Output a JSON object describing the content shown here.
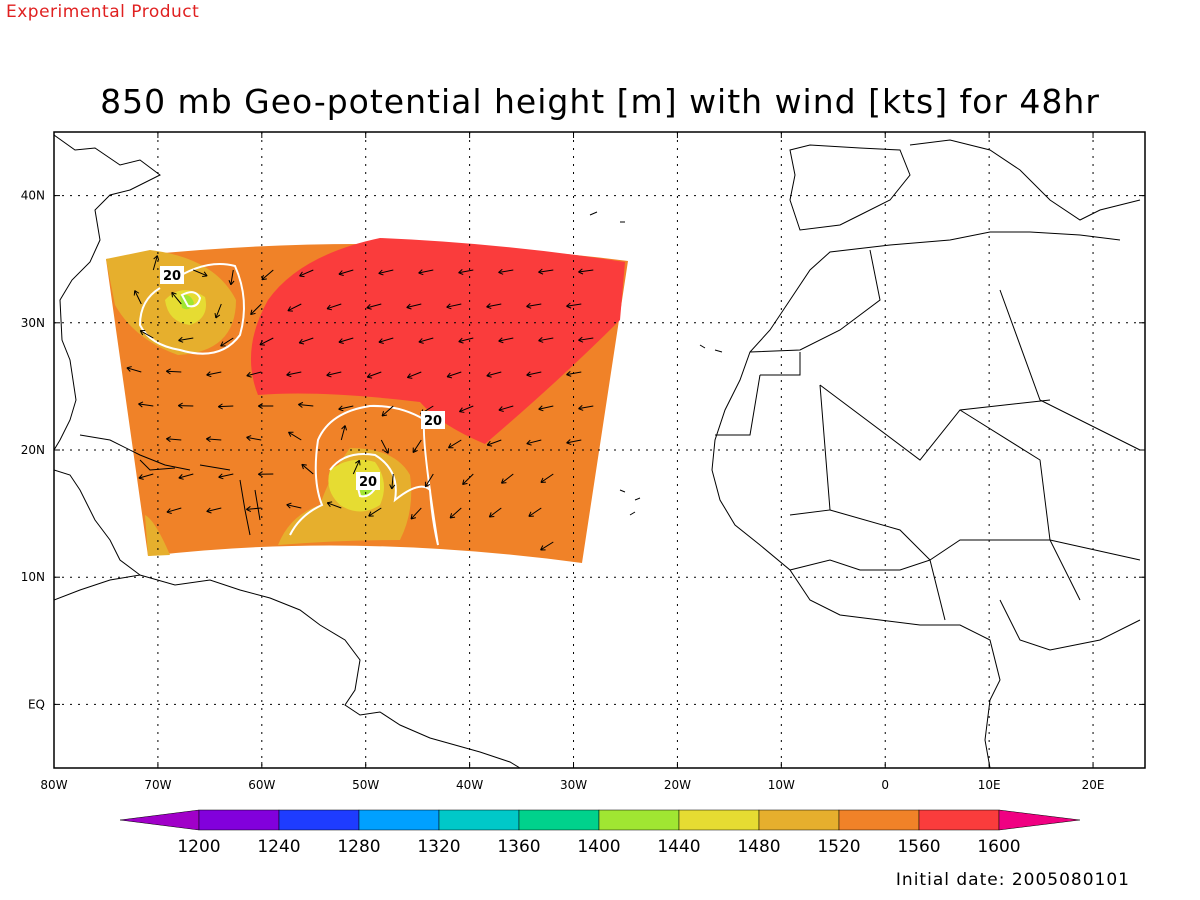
{
  "header": {
    "product_note": "Experimental Product",
    "title": "850 mb Geo-potential height [m] with wind [kts] for 48hr"
  },
  "footer": {
    "initial_date": "Initial date: 2005080101"
  },
  "map": {
    "lon_range": [
      -80,
      25
    ],
    "lat_range": [
      -5,
      45
    ],
    "lon_ticks": [
      {
        "lon": -80,
        "label": "80W"
      },
      {
        "lon": -70,
        "label": "70W"
      },
      {
        "lon": -60,
        "label": "60W"
      },
      {
        "lon": -50,
        "label": "50W"
      },
      {
        "lon": -40,
        "label": "40W"
      },
      {
        "lon": -30,
        "label": "30W"
      },
      {
        "lon": -20,
        "label": "20W"
      },
      {
        "lon": -10,
        "label": "10W"
      },
      {
        "lon": 0,
        "label": "0"
      },
      {
        "lon": 10,
        "label": "10E"
      },
      {
        "lon": 20,
        "label": "20E"
      }
    ],
    "lat_ticks": [
      {
        "lat": 40,
        "label": "40N"
      },
      {
        "lat": 30,
        "label": "30N"
      },
      {
        "lat": 20,
        "label": "20N"
      },
      {
        "lat": 10,
        "label": "10N"
      },
      {
        "lat": 0,
        "label": "EQ"
      }
    ],
    "grid": "dotted",
    "contour_labels": [
      "20",
      "20",
      "20"
    ]
  },
  "colorbar": {
    "colors": [
      "#a000c8",
      "#8200dc",
      "#1e3cff",
      "#00a0ff",
      "#00c8c8",
      "#00d28c",
      "#a0e632",
      "#e6dc32",
      "#e6af2d",
      "#f08228",
      "#fa3c3c",
      "#f00082"
    ],
    "labels": [
      "1200",
      "1240",
      "1280",
      "1320",
      "1360",
      "1400",
      "1440",
      "1480",
      "1520",
      "1560",
      "1600"
    ]
  },
  "field_colors": {
    "orange": "#f08228",
    "red": "#fa3c3c",
    "gold": "#e6af2d",
    "yellow": "#e6dc32",
    "green": "#a0e632"
  }
}
